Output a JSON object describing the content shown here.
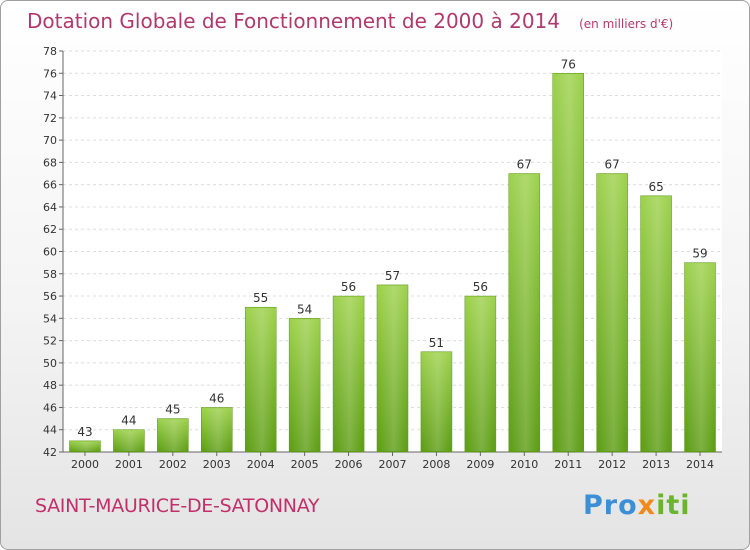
{
  "chart_data": {
    "type": "bar",
    "title": "Dotation Globale de Fonctionnement de 2000 à 2014",
    "subtitle": "(en milliers d'€)",
    "categories": [
      "2000",
      "2001",
      "2002",
      "2003",
      "2004",
      "2005",
      "2006",
      "2007",
      "2008",
      "2009",
      "2010",
      "2011",
      "2012",
      "2013",
      "2014"
    ],
    "values": [
      43,
      44,
      45,
      46,
      55,
      54,
      56,
      57,
      51,
      56,
      67,
      76,
      67,
      65,
      59
    ],
    "ylim": [
      42,
      78
    ],
    "yticks": [
      42,
      44,
      46,
      48,
      50,
      52,
      54,
      56,
      58,
      60,
      62,
      64,
      66,
      68,
      70,
      72,
      74,
      76,
      78
    ],
    "grid": true,
    "bar_color": "#7cbf2a",
    "data_labels": true
  },
  "commune": "SAINT-MAURICE-DE-SATONNAY",
  "logo": {
    "part1": "Pro",
    "part2": "x",
    "part3": "iti"
  },
  "colors": {
    "title": "#b03a6c",
    "commune": "#c2306a"
  }
}
